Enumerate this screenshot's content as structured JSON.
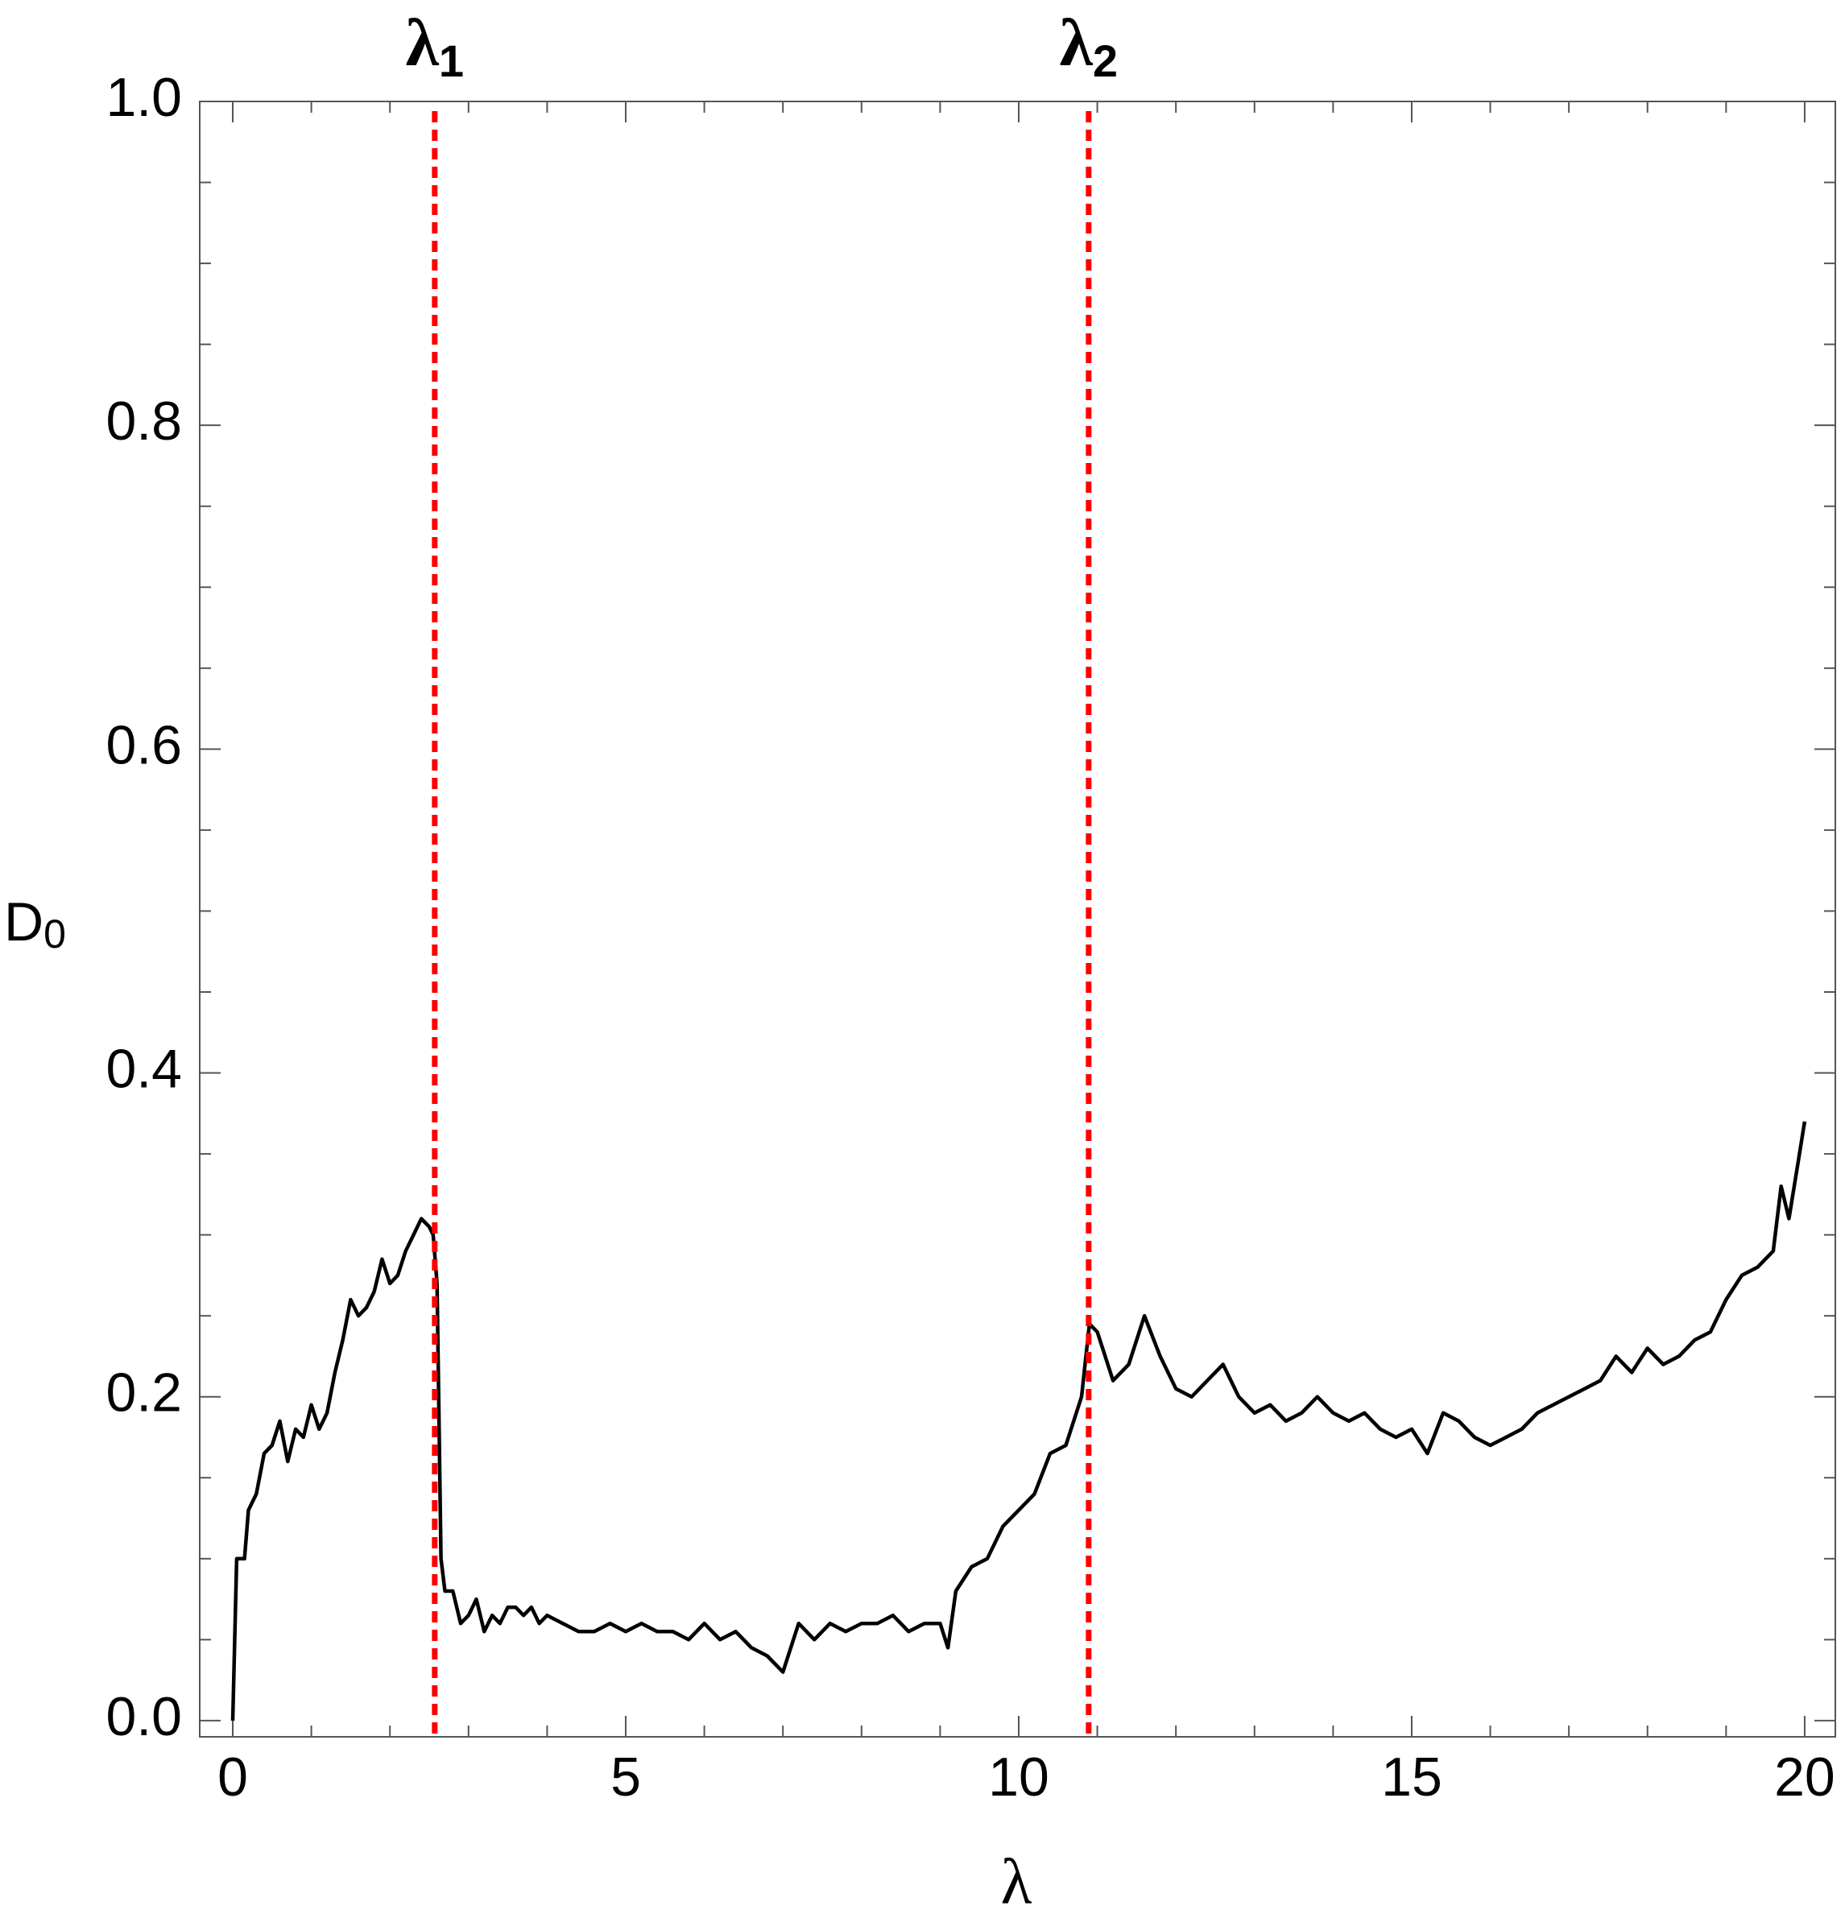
{
  "chart_data": {
    "type": "line",
    "x_label": {
      "text": "λ"
    },
    "y_label": {
      "text": "D",
      "subscript": "0"
    },
    "annotations": [
      {
        "x": 2.57,
        "label": "λ",
        "subscript": "1",
        "color": "#ff0000"
      },
      {
        "x": 10.89,
        "label": "λ",
        "subscript": "2",
        "color": "#ff0000"
      }
    ],
    "xlim": [
      -0.42,
      20.39
    ],
    "ylim": [
      -0.01,
      1.0
    ],
    "xticks": [
      0,
      5,
      10,
      15,
      20
    ],
    "yticks": [
      {
        "value": 0,
        "label": "0.0"
      },
      0.2,
      0.4,
      0.6,
      0.8,
      {
        "value": 1,
        "label": "1.0"
      }
    ],
    "xminorticks": [
      1,
      2,
      3,
      4,
      6,
      7,
      8,
      9,
      11,
      12,
      13,
      14,
      16,
      17,
      18,
      19
    ],
    "yminorticks": [
      0.05,
      0.1,
      0.15,
      0.25,
      0.3,
      0.35,
      0.45,
      0.5,
      0.55,
      0.65,
      0.7,
      0.75,
      0.85,
      0.9,
      0.95
    ],
    "series": [
      {
        "color": "#000000",
        "x": [
          0,
          0.05,
          0.15,
          0.2,
          0.3,
          0.4,
          0.5,
          0.6,
          0.7,
          0.8,
          0.9,
          1.0,
          1.1,
          1.2,
          1.3,
          1.4,
          1.5,
          1.6,
          1.7,
          1.8,
          1.9,
          2.0,
          2.1,
          2.2,
          2.3,
          2.4,
          2.5,
          2.55,
          2.6,
          2.65,
          2.7,
          2.8,
          2.9,
          3.0,
          3.1,
          3.2,
          3.3,
          3.4,
          3.5,
          3.6,
          3.7,
          3.8,
          3.9,
          4.0,
          4.2,
          4.4,
          4.6,
          4.8,
          5.0,
          5.2,
          5.4,
          5.6,
          5.8,
          6.0,
          6.2,
          6.4,
          6.6,
          6.8,
          7.0,
          7.2,
          7.4,
          7.6,
          7.8,
          8.0,
          8.2,
          8.4,
          8.6,
          8.8,
          9.0,
          9.1,
          9.2,
          9.4,
          9.6,
          9.8,
          10.0,
          10.2,
          10.4,
          10.6,
          10.8,
          10.9,
          11.0,
          11.2,
          11.4,
          11.6,
          11.8,
          12.0,
          12.2,
          12.4,
          12.6,
          12.8,
          13.0,
          13.2,
          13.4,
          13.6,
          13.8,
          14.0,
          14.2,
          14.4,
          14.6,
          14.8,
          15.0,
          15.2,
          15.4,
          15.6,
          15.8,
          16.0,
          16.2,
          16.4,
          16.6,
          16.8,
          17.0,
          17.2,
          17.4,
          17.6,
          17.8,
          18.0,
          18.2,
          18.4,
          18.6,
          18.8,
          19.0,
          19.2,
          19.4,
          19.6,
          19.7,
          19.8,
          19.9,
          20.0
        ],
        "values": [
          0,
          0.1,
          0.1,
          0.13,
          0.14,
          0.165,
          0.17,
          0.185,
          0.16,
          0.18,
          0.175,
          0.195,
          0.18,
          0.19,
          0.215,
          0.235,
          0.26,
          0.25,
          0.255,
          0.265,
          0.285,
          0.27,
          0.275,
          0.29,
          0.3,
          0.31,
          0.305,
          0.3,
          0.27,
          0.1,
          0.08,
          0.08,
          0.06,
          0.065,
          0.075,
          0.055,
          0.065,
          0.06,
          0.07,
          0.07,
          0.065,
          0.07,
          0.06,
          0.065,
          0.06,
          0.055,
          0.055,
          0.06,
          0.055,
          0.06,
          0.055,
          0.055,
          0.05,
          0.06,
          0.05,
          0.055,
          0.045,
          0.04,
          0.03,
          0.06,
          0.05,
          0.06,
          0.055,
          0.06,
          0.06,
          0.065,
          0.055,
          0.06,
          0.06,
          0.045,
          0.08,
          0.095,
          0.1,
          0.12,
          0.13,
          0.14,
          0.165,
          0.17,
          0.2,
          0.245,
          0.24,
          0.21,
          0.22,
          0.25,
          0.225,
          0.205,
          0.2,
          0.21,
          0.22,
          0.2,
          0.19,
          0.195,
          0.185,
          0.19,
          0.2,
          0.19,
          0.185,
          0.19,
          0.18,
          0.175,
          0.18,
          0.165,
          0.19,
          0.185,
          0.175,
          0.17,
          0.175,
          0.18,
          0.19,
          0.195,
          0.2,
          0.205,
          0.21,
          0.225,
          0.215,
          0.23,
          0.22,
          0.225,
          0.235,
          0.24,
          0.26,
          0.275,
          0.28,
          0.29,
          0.33,
          0.31,
          0.34,
          0.37
        ]
      }
    ]
  }
}
